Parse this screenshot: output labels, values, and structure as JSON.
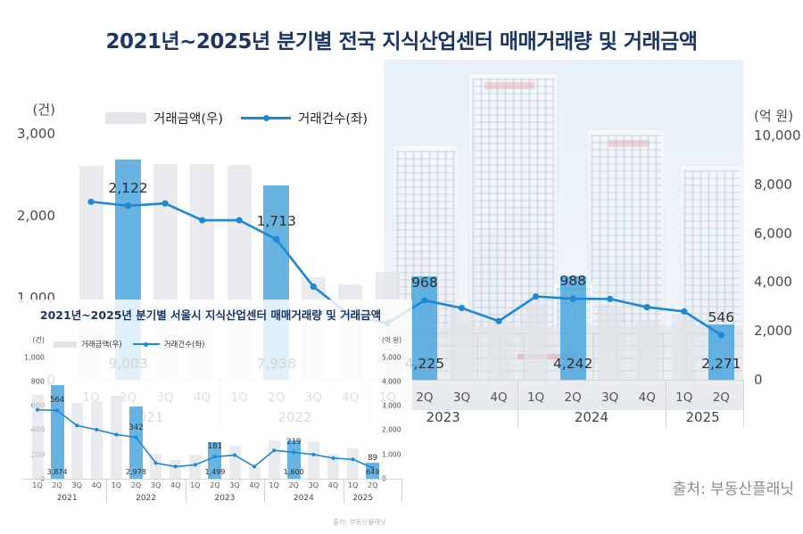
{
  "page": {
    "title": "2021년~2025년 분기별 전국 지식산업센터 매매거래량 및 거래금액",
    "source": "출처: 부동산플래닛"
  },
  "colors": {
    "title_navy": "#1B3666",
    "bar_gray": "#E3E5E9",
    "bar_highlight_blue": "#55AFE4",
    "line_blue": "#1F87D3",
    "label_text": "#2E2E2E",
    "axis_text": "#4A4A4A",
    "source_gray": "#8C8C8C"
  },
  "chart_data": [
    {
      "id": "national",
      "type": "bar+line",
      "region": "전국",
      "title": "2021년~2025년 분기별 전국 지식산업센터 매매거래량 및 거래금액",
      "categories": [
        "1Q",
        "2Q",
        "3Q",
        "4Q",
        "1Q",
        "2Q",
        "3Q",
        "4Q",
        "1Q",
        "2Q",
        "3Q",
        "4Q",
        "1Q",
        "2Q",
        "3Q",
        "4Q",
        "1Q",
        "2Q"
      ],
      "year_groups": [
        {
          "label": "2021",
          "span": 4
        },
        {
          "label": "2022",
          "span": 4
        },
        {
          "label": "2023",
          "span": 4
        },
        {
          "label": "2024",
          "span": 4
        },
        {
          "label": "2025",
          "span": 2
        }
      ],
      "left_axis": {
        "title": "(건)",
        "ticks": [
          "3,000",
          "2,000",
          "1,000",
          "0"
        ],
        "range": [
          0,
          3000
        ]
      },
      "right_axis": {
        "title": "(억 원)",
        "ticks": [
          "10,000",
          "8,000",
          "6,000",
          "4,000",
          "2,000",
          "0"
        ],
        "range": [
          0,
          10000
        ]
      },
      "series": [
        {
          "name": "거래금액(우)",
          "type": "bar",
          "axis": "right",
          "unit": "억 원",
          "values": [
            8760,
            9003,
            8830,
            8830,
            8810,
            7938,
            4200,
            3900,
            4400,
            4225,
            2850,
            2410,
            3140,
            4242,
            2960,
            2410,
            2700,
            2271
          ],
          "label_indices": [
            1,
            5,
            9,
            13,
            17
          ],
          "label_texts": [
            "9,003",
            "7,938",
            "4,225",
            "4,242",
            "2,271"
          ]
        },
        {
          "name": "거래건수(좌)",
          "type": "line",
          "axis": "left",
          "unit": "건",
          "values": [
            2170,
            2122,
            2150,
            1945,
            1945,
            1713,
            1135,
            780,
            690,
            968,
            875,
            715,
            1015,
            988,
            985,
            885,
            833,
            546
          ],
          "label_indices": [
            1,
            5,
            9,
            13,
            17
          ],
          "label_texts": [
            "2,122",
            "1,713",
            "968",
            "988",
            "546"
          ]
        }
      ]
    },
    {
      "id": "seoul",
      "type": "bar+line",
      "region": "서울시",
      "title": "2021년~2025년 분기별 서울시 지식산업센터 매매거래량 및 거래금액",
      "source": "출처: 부동산플래닛",
      "categories": [
        "1Q",
        "2Q",
        "3Q",
        "4Q",
        "1Q",
        "2Q",
        "3Q",
        "4Q",
        "1Q",
        "2Q",
        "3Q",
        "4Q",
        "1Q",
        "2Q",
        "3Q",
        "4Q",
        "1Q",
        "2Q"
      ],
      "year_groups": [
        {
          "label": "2021",
          "span": 4
        },
        {
          "label": "2022",
          "span": 4
        },
        {
          "label": "2023",
          "span": 4
        },
        {
          "label": "2024",
          "span": 4
        },
        {
          "label": "2025",
          "span": 2
        }
      ],
      "left_axis": {
        "title": "(건)",
        "ticks": [
          "1,000",
          "800",
          "600",
          "400",
          "200",
          "0"
        ],
        "range": [
          0,
          1000
        ]
      },
      "right_axis": {
        "title": "(억 원)",
        "ticks": [
          "5,000",
          "4,000",
          "3,000",
          "2,000",
          "1,000",
          "0"
        ],
        "range": [
          0,
          5000
        ]
      },
      "series": [
        {
          "name": "거래금액(우)",
          "type": "bar",
          "axis": "right",
          "unit": "억 원",
          "values": [
            3470,
            3874,
            3140,
            3200,
            3430,
            2978,
            1030,
            775,
            1000,
            1499,
            1365,
            480,
            1585,
            1600,
            1550,
            1030,
            1255,
            649
          ],
          "label_indices": [
            1,
            5,
            9,
            13,
            17
          ],
          "label_texts": [
            "3,874",
            "2,978",
            "1,499",
            "1,600",
            "649"
          ]
        },
        {
          "name": "거래건수(좌)",
          "type": "line",
          "axis": "left",
          "unit": "건",
          "values": [
            570,
            564,
            440,
            405,
            365,
            342,
            130,
            100,
            115,
            181,
            195,
            100,
            234,
            219,
            200,
            170,
            160,
            89
          ],
          "label_indices": [
            1,
            5,
            9,
            13,
            17
          ],
          "label_texts": [
            "564",
            "342",
            "181",
            "219",
            "89"
          ]
        }
      ]
    }
  ]
}
